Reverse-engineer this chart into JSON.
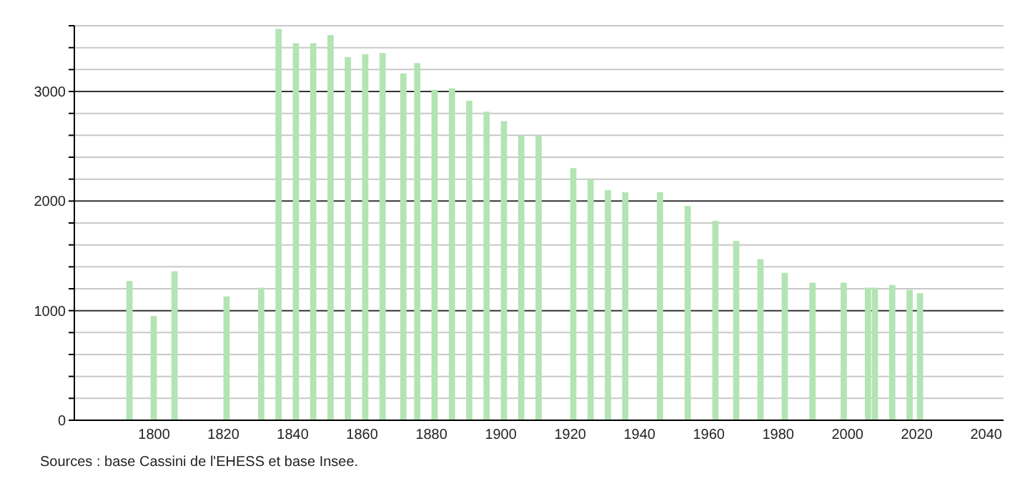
{
  "chart_data": {
    "type": "bar",
    "x": [
      1793,
      1800,
      1806,
      1821,
      1831,
      1836,
      1841,
      1846,
      1851,
      1856,
      1861,
      1866,
      1872,
      1876,
      1881,
      1886,
      1891,
      1896,
      1901,
      1906,
      1911,
      1921,
      1926,
      1931,
      1936,
      1946,
      1954,
      1962,
      1968,
      1975,
      1982,
      1990,
      1999,
      2006,
      2008,
      2013,
      2018,
      2021
    ],
    "values": [
      1270,
      950,
      1360,
      1130,
      1210,
      3570,
      3440,
      3440,
      3515,
      3315,
      3340,
      3350,
      3165,
      3260,
      3015,
      3030,
      2915,
      2815,
      2730,
      2600,
      2600,
      2300,
      2200,
      2100,
      2080,
      2080,
      1955,
      1820,
      1635,
      1470,
      1345,
      1255,
      1255,
      1210,
      1210,
      1235,
      1190,
      1160
    ],
    "color": "#b3e4b3",
    "xlim": [
      1777,
      2045
    ],
    "xticks": [
      1800,
      1820,
      1840,
      1860,
      1880,
      1900,
      1920,
      1940,
      1960,
      1980,
      2000,
      2020,
      2040
    ],
    "ylim": [
      0,
      3600
    ],
    "yticks": [
      0,
      {
        "value": 200,
        "label": null
      },
      {
        "value": 400,
        "label": null
      },
      {
        "value": 600,
        "label": null
      },
      {
        "value": 800,
        "label": null
      },
      1000,
      {
        "value": 1200,
        "label": null
      },
      {
        "value": 1400,
        "label": null
      },
      {
        "value": 1600,
        "label": null
      },
      {
        "value": 1800,
        "label": null
      },
      2000,
      {
        "value": 2200,
        "label": null
      },
      {
        "value": 2400,
        "label": null
      },
      {
        "value": 2600,
        "label": null
      },
      {
        "value": 2800,
        "label": null
      },
      3000,
      {
        "value": 3200,
        "label": null
      },
      {
        "value": 3400,
        "label": null
      },
      {
        "value": 3600,
        "label": null
      }
    ],
    "grid": "y",
    "annotations": [
      "Sources : base Cassini de l'EHESS et base Insee."
    ]
  }
}
